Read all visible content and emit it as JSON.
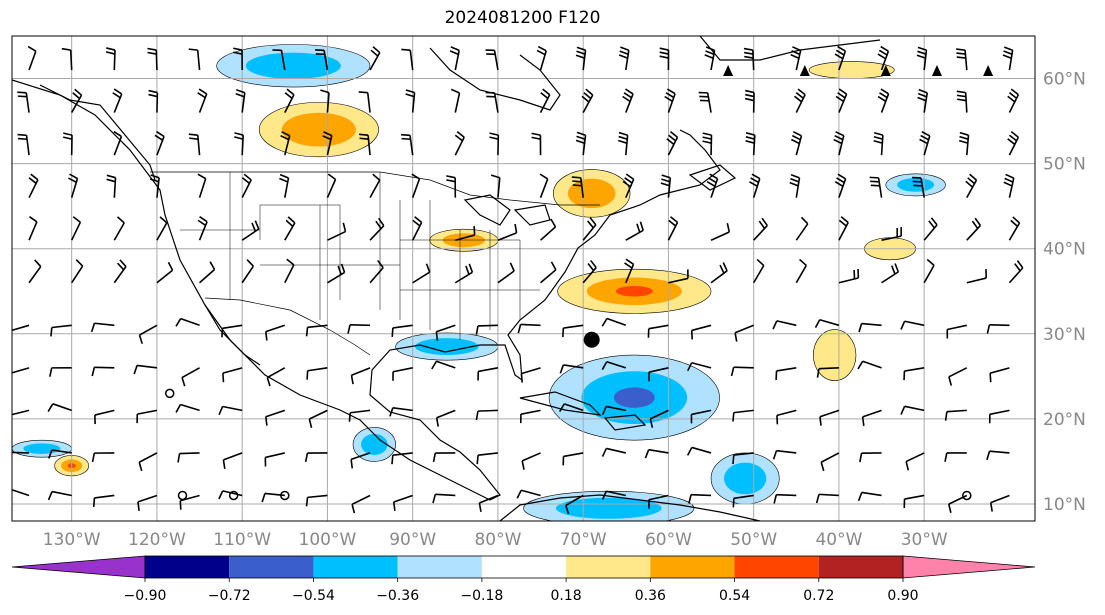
{
  "title": "2024081200 F120",
  "map": {
    "projection": "plate-carree",
    "lon_range": [
      -137,
      -17
    ],
    "lat_range": [
      8,
      65
    ],
    "gridlines": true,
    "lon_ticks": [
      {
        "value": -130,
        "label": "130°W"
      },
      {
        "value": -120,
        "label": "120°W"
      },
      {
        "value": -110,
        "label": "110°W"
      },
      {
        "value": -100,
        "label": "100°W"
      },
      {
        "value": -90,
        "label": "90°W"
      },
      {
        "value": -80,
        "label": "80°W"
      },
      {
        "value": -70,
        "label": "70°W"
      },
      {
        "value": -60,
        "label": "60°W"
      },
      {
        "value": -50,
        "label": "50°W"
      },
      {
        "value": -40,
        "label": "40°W"
      },
      {
        "value": -30,
        "label": "30°W"
      }
    ],
    "lat_ticks": [
      {
        "value": 10,
        "label": "10°N"
      },
      {
        "value": 20,
        "label": "20°N"
      },
      {
        "value": 30,
        "label": "30°N"
      },
      {
        "value": 40,
        "label": "40°N"
      },
      {
        "value": 50,
        "label": "50°N"
      },
      {
        "value": 60,
        "label": "60°N"
      }
    ],
    "storm_marker": {
      "lon": -69,
      "lat": 29.3
    },
    "calm_circles": [
      {
        "lon": -118.5,
        "lat": 23
      },
      {
        "lon": -117,
        "lat": 11
      },
      {
        "lon": -111,
        "lat": 11
      },
      {
        "lon": -105,
        "lat": 11
      },
      {
        "lon": -25,
        "lat": 11
      }
    ],
    "fronts": [
      {
        "lon": -53,
        "lat": 61
      },
      {
        "lon": -44,
        "lat": 61
      },
      {
        "lon": -34.5,
        "lat": 61
      },
      {
        "lon": -28.5,
        "lat": 61
      },
      {
        "lon": -22.5,
        "lat": 61
      }
    ]
  },
  "colorbar": {
    "ticks": [
      "−0.90",
      "−0.72",
      "−0.54",
      "−0.36",
      "−0.18",
      "0.18",
      "0.36",
      "0.54",
      "0.72",
      "0.90"
    ],
    "colors": [
      "#9932cc",
      "#00008b",
      "#3a5fcd",
      "#00bfff",
      "#b0e2ff",
      "#ffffff",
      "#ffe88a",
      "#ffa500",
      "#ff4500",
      "#b22222",
      "#ff82ab"
    ]
  },
  "chart_data": {
    "type": "heatmap",
    "title": "2024081200 F120",
    "units": "",
    "regions": [
      {
        "lon": -104,
        "lat": 61.5,
        "rx": 9,
        "ry": 2.5,
        "level": -0.36
      },
      {
        "lon": -101,
        "lat": 54,
        "rx": 7,
        "ry": 3.2,
        "level": 0.36
      },
      {
        "lon": -69,
        "lat": 46.5,
        "rx": 4.5,
        "ry": 2.8,
        "level": 0.36
      },
      {
        "lon": -84,
        "lat": 41,
        "rx": 4,
        "ry": 1.3,
        "level": 0.36
      },
      {
        "lon": -64,
        "lat": 35,
        "rx": 9,
        "ry": 2.6,
        "level": 0.54
      },
      {
        "lon": -86,
        "lat": 28.5,
        "rx": 6,
        "ry": 1.6,
        "level": -0.36
      },
      {
        "lon": -64,
        "lat": 22.5,
        "rx": 10,
        "ry": 5,
        "level": -0.54
      },
      {
        "lon": -31,
        "lat": 47.5,
        "rx": 3.5,
        "ry": 1.3,
        "level": -0.36
      },
      {
        "lon": -51,
        "lat": 13,
        "rx": 4,
        "ry": 3,
        "level": -0.36
      },
      {
        "lon": -67,
        "lat": 9.5,
        "rx": 10,
        "ry": 2,
        "level": -0.36
      },
      {
        "lon": -133.5,
        "lat": 16.5,
        "rx": 3.5,
        "ry": 1,
        "level": -0.36
      },
      {
        "lon": -130,
        "lat": 14.5,
        "rx": 2,
        "ry": 1.2,
        "level": 0.54
      },
      {
        "lon": -94.5,
        "lat": 17,
        "rx": 2.5,
        "ry": 2,
        "level": -0.36
      },
      {
        "lon": -40.5,
        "lat": 27.5,
        "rx": 2.5,
        "ry": 3,
        "level": 0.18
      },
      {
        "lon": -34,
        "lat": 40,
        "rx": 3,
        "ry": 1.3,
        "level": 0.18
      },
      {
        "lon": -38.5,
        "lat": 61,
        "rx": 5,
        "ry": 1,
        "level": 0.18
      }
    ]
  }
}
